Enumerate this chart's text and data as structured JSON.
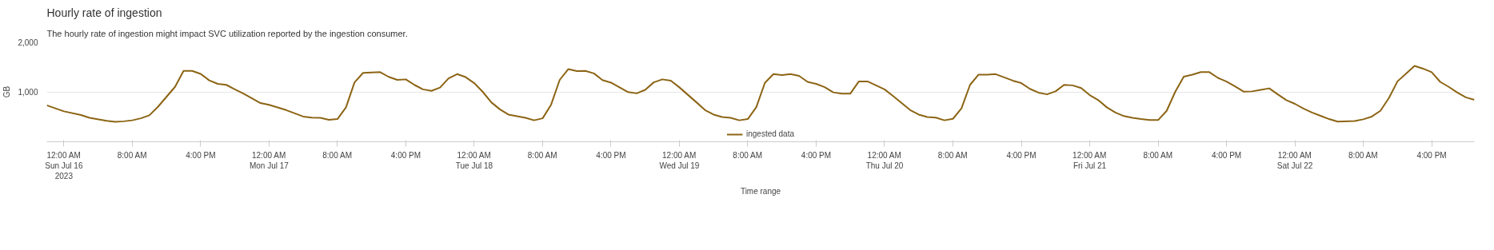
{
  "chart_data": {
    "type": "line",
    "title": "Hourly rate of ingestion",
    "subtitle": "The hourly rate of ingestion might impact SVC utilization reported by the ingestion consumer.",
    "xlabel": "Time range",
    "ylabel": "GB",
    "xlim": [
      "2023-07-15T22:00",
      "2023-07-22T21:00"
    ],
    "xticks": [
      {
        "value": "2023-07-16T00:00",
        "label": "12:00 AM\nSun Jul 16\n2023"
      },
      {
        "value": "2023-07-16T08:00",
        "label": "8:00 AM"
      },
      {
        "value": "2023-07-16T16:00",
        "label": "4:00 PM"
      },
      {
        "value": "2023-07-17T00:00",
        "label": "12:00 AM\nMon Jul 17"
      },
      {
        "value": "2023-07-17T08:00",
        "label": "8:00 AM"
      },
      {
        "value": "2023-07-17T16:00",
        "label": "4:00 PM"
      },
      {
        "value": "2023-07-18T00:00",
        "label": "12:00 AM\nTue Jul 18"
      },
      {
        "value": "2023-07-18T08:00",
        "label": "8:00 AM"
      },
      {
        "value": "2023-07-18T16:00",
        "label": "4:00 PM"
      },
      {
        "value": "2023-07-19T00:00",
        "label": "12:00 AM\nWed Jul 19"
      },
      {
        "value": "2023-07-19T08:00",
        "label": "8:00 AM"
      },
      {
        "value": "2023-07-19T16:00",
        "label": "4:00 PM"
      },
      {
        "value": "2023-07-20T00:00",
        "label": "12:00 AM\nThu Jul 20"
      },
      {
        "value": "2023-07-20T08:00",
        "label": "8:00 AM"
      },
      {
        "value": "2023-07-20T16:00",
        "label": "4:00 PM"
      },
      {
        "value": "2023-07-21T00:00",
        "label": "12:00 AM\nFri Jul 21"
      },
      {
        "value": "2023-07-21T08:00",
        "label": "8:00 AM"
      },
      {
        "value": "2023-07-21T16:00",
        "label": "4:00 PM"
      },
      {
        "value": "2023-07-22T00:00",
        "label": "12:00 AM\nSat Jul 22"
      },
      {
        "value": "2023-07-22T08:00",
        "label": "8:00 AM"
      },
      {
        "value": "2023-07-22T16:00",
        "label": "4:00 PM"
      }
    ],
    "ylim": [
      0,
      2000
    ],
    "yticks": [
      {
        "value": 1000,
        "label": "1,000"
      },
      {
        "value": 2000,
        "label": "2,000"
      }
    ],
    "grid": "y",
    "legend": "bottom",
    "marker": "none",
    "line_style": "solid",
    "series": [
      {
        "name": "ingested data",
        "color": "#8c6414",
        "x": [
          "2023-07-15T22:00",
          "2023-07-16T00:00",
          "2023-07-16T02:00",
          "2023-07-16T03:00",
          "2023-07-16T05:00",
          "2023-07-16T06:00",
          "2023-07-16T07:00",
          "2023-07-16T08:00",
          "2023-07-16T09:00",
          "2023-07-16T10:00",
          "2023-07-16T11:00",
          "2023-07-16T13:00",
          "2023-07-16T14:00",
          "2023-07-16T15:00",
          "2023-07-16T16:00",
          "2023-07-16T17:00",
          "2023-07-16T18:00",
          "2023-07-16T19:00",
          "2023-07-16T20:00",
          "2023-07-16T21:00",
          "2023-07-16T23:00",
          "2023-07-17T00:00",
          "2023-07-17T02:00",
          "2023-07-17T04:00",
          "2023-07-17T05:00",
          "2023-07-17T06:00",
          "2023-07-17T07:00",
          "2023-07-17T08:00",
          "2023-07-17T09:00",
          "2023-07-17T10:00",
          "2023-07-17T11:00",
          "2023-07-17T13:00",
          "2023-07-17T14:00",
          "2023-07-17T15:00",
          "2023-07-17T16:00",
          "2023-07-17T17:00",
          "2023-07-17T18:00",
          "2023-07-17T19:00",
          "2023-07-17T20:00",
          "2023-07-17T21:00",
          "2023-07-17T22:00",
          "2023-07-17T23:00",
          "2023-07-18T00:00",
          "2023-07-18T01:00",
          "2023-07-18T02:00",
          "2023-07-18T03:00",
          "2023-07-18T04:00",
          "2023-07-18T06:00",
          "2023-07-18T07:00",
          "2023-07-18T08:00",
          "2023-07-18T09:00",
          "2023-07-18T10:00",
          "2023-07-18T11:00",
          "2023-07-18T12:00",
          "2023-07-18T13:00",
          "2023-07-18T14:00",
          "2023-07-18T15:00",
          "2023-07-18T16:00",
          "2023-07-18T18:00",
          "2023-07-18T19:00",
          "2023-07-18T20:00",
          "2023-07-18T21:00",
          "2023-07-18T22:00",
          "2023-07-18T23:00",
          "2023-07-19T00:00",
          "2023-07-19T02:00",
          "2023-07-19T03:00",
          "2023-07-19T04:00",
          "2023-07-19T05:00",
          "2023-07-19T06:00",
          "2023-07-19T07:00",
          "2023-07-19T08:00",
          "2023-07-19T09:00",
          "2023-07-19T10:00",
          "2023-07-19T11:00",
          "2023-07-19T12:00",
          "2023-07-19T13:00",
          "2023-07-19T14:00",
          "2023-07-19T15:00",
          "2023-07-19T16:00",
          "2023-07-19T17:00",
          "2023-07-19T18:00",
          "2023-07-19T19:00",
          "2023-07-19T20:00",
          "2023-07-19T21:00",
          "2023-07-19T22:00",
          "2023-07-19T23:00",
          "2023-07-20T00:00",
          "2023-07-20T01:00",
          "2023-07-20T02:00",
          "2023-07-20T03:00",
          "2023-07-20T04:00",
          "2023-07-20T05:00",
          "2023-07-20T06:00",
          "2023-07-20T07:00",
          "2023-07-20T08:00",
          "2023-07-20T09:00",
          "2023-07-20T10:00",
          "2023-07-20T11:00",
          "2023-07-20T12:00",
          "2023-07-20T13:00",
          "2023-07-20T14:00",
          "2023-07-20T15:00",
          "2023-07-20T16:00",
          "2023-07-20T17:00",
          "2023-07-20T18:00",
          "2023-07-20T19:00",
          "2023-07-20T20:00",
          "2023-07-20T21:00",
          "2023-07-20T22:00",
          "2023-07-20T23:00",
          "2023-07-21T00:00",
          "2023-07-21T01:00",
          "2023-07-21T02:00",
          "2023-07-21T03:00",
          "2023-07-21T04:00",
          "2023-07-21T05:00",
          "2023-07-21T06:00",
          "2023-07-21T07:00",
          "2023-07-21T08:00",
          "2023-07-21T09:00",
          "2023-07-21T10:00",
          "2023-07-21T11:00",
          "2023-07-21T12:00",
          "2023-07-21T13:00",
          "2023-07-21T14:00",
          "2023-07-21T15:00",
          "2023-07-21T16:00",
          "2023-07-21T17:00",
          "2023-07-21T18:00",
          "2023-07-21T19:00",
          "2023-07-21T20:00",
          "2023-07-21T21:00",
          "2023-07-21T22:00",
          "2023-07-21T23:00",
          "2023-07-22T00:00",
          "2023-07-22T01:00",
          "2023-07-22T02:00",
          "2023-07-22T03:00",
          "2023-07-22T04:00",
          "2023-07-22T05:00",
          "2023-07-22T07:00",
          "2023-07-22T08:00",
          "2023-07-22T09:00",
          "2023-07-22T10:00",
          "2023-07-22T11:00",
          "2023-07-22T12:00",
          "2023-07-22T13:00",
          "2023-07-22T14:00",
          "2023-07-22T15:00",
          "2023-07-22T16:00",
          "2023-07-22T17:00",
          "2023-07-22T18:00",
          "2023-07-22T19:00",
          "2023-07-22T20:00",
          "2023-07-22T21:00"
        ],
        "values": [
          730,
          610,
          535,
          480,
          420,
          400,
          410,
          430,
          470,
          530,
          700,
          1100,
          1420,
          1420,
          1360,
          1230,
          1160,
          1140,
          1050,
          965,
          775,
          740,
          635,
          505,
          485,
          480,
          440,
          455,
          690,
          1190,
          1380,
          1395,
          1300,
          1240,
          1250,
          1140,
          1050,
          1020,
          1085,
          1270,
          1355,
          1295,
          1175,
          1000,
          790,
          650,
          545,
          480,
          430,
          470,
          745,
          1240,
          1455,
          1415,
          1420,
          1370,
          1235,
          1185,
          995,
          970,
          1040,
          1190,
          1250,
          1225,
          1090,
          790,
          635,
          545,
          495,
          480,
          430,
          455,
          695,
          1180,
          1355,
          1335,
          1355,
          1320,
          1200,
          1160,
          1095,
          990,
          965,
          965,
          1210,
          1210,
          1130,
          1050,
          915,
          775,
          635,
          545,
          495,
          485,
          430,
          460,
          670,
          1140,
          1345,
          1345,
          1355,
          1290,
          1225,
          1175,
          1060,
          985,
          950,
          1010,
          1140,
          1130,
          1075,
          935,
          835,
          690,
          585,
          515,
          480,
          455,
          435,
          435,
          620,
          1000,
          1305,
          1345,
          1395,
          1395,
          1280,
          1205,
          1110,
          1005,
          1010,
          1040,
          1070,
          950,
          835,
          760,
          665,
          585,
          520,
          455,
          405,
          415,
          450,
          505,
          620,
          875,
          1210,
          1365,
          1520,
          1465,
          1395,
          1200,
          1100,
          985,
          890,
          840
        ]
      }
    ]
  }
}
